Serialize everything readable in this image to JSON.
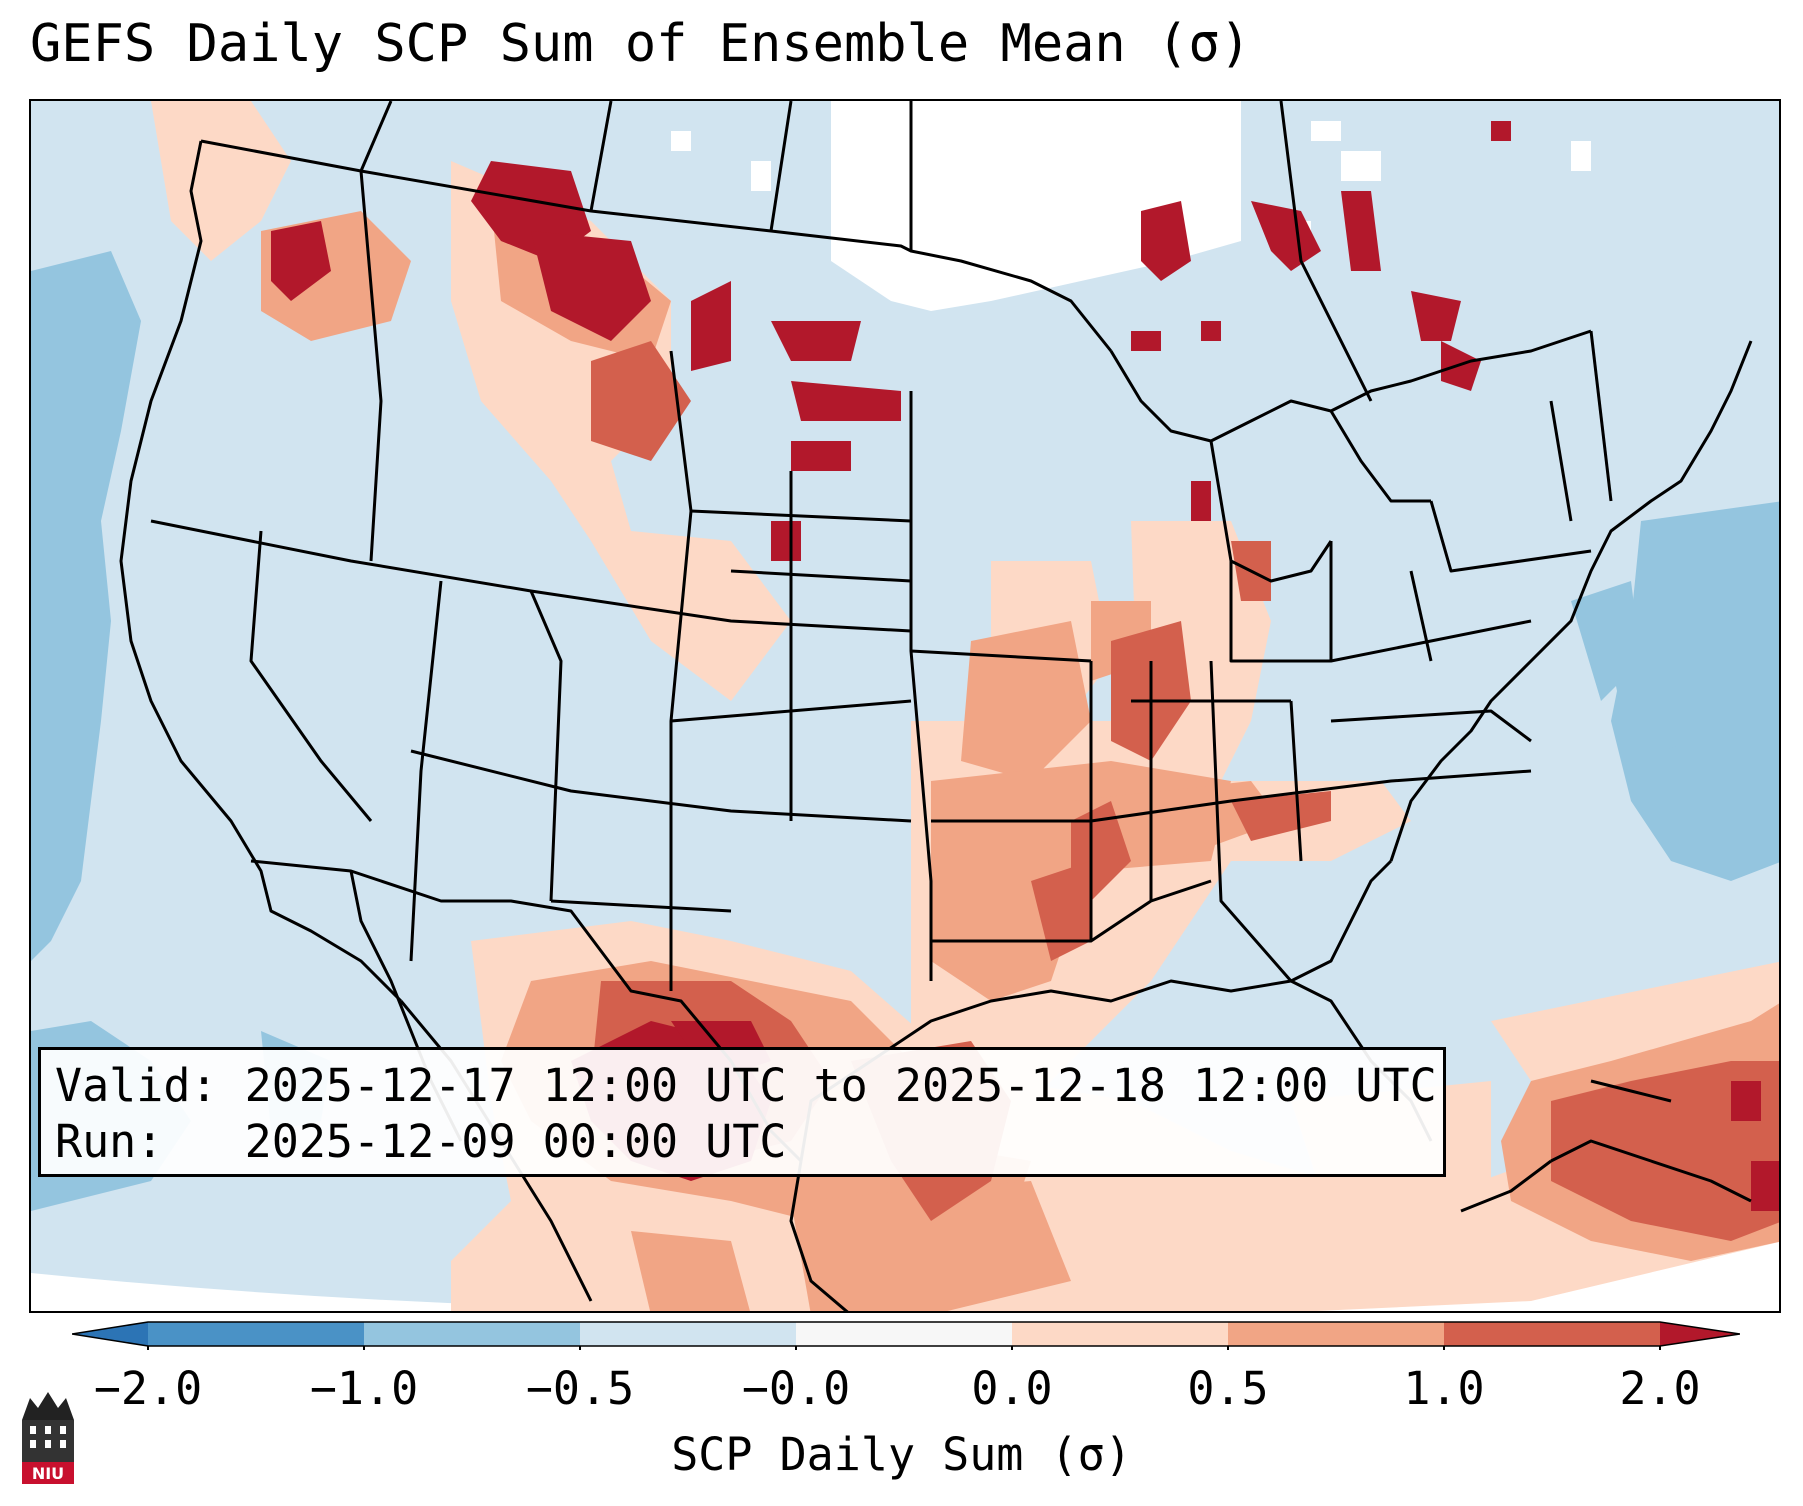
{
  "title": "GEFS Daily SCP Sum of Ensemble Mean (σ)",
  "valid_line": "Valid: 2025-12-17 12:00 UTC to 2025-12-18 12:00 UTC",
  "run_line": "Run:   2025-12-09 00:00 UTC",
  "colorbar": {
    "label": "SCP Daily Sum (σ)",
    "ticks": [
      "−2.0",
      "−1.0",
      "−0.5",
      "−0.0",
      "0.0",
      "0.5",
      "1.0",
      "2.0"
    ],
    "colors": {
      "extend_low": "#2c74b5",
      "c1": "#4a92c6",
      "c2": "#94c5df",
      "c3": "#d1e4f0",
      "c4": "#f7f7f7",
      "c5": "#fdd9c6",
      "c6": "#f1a585",
      "c7": "#d3604d",
      "c8": "#b2182b",
      "extend_high": "#a01424"
    }
  },
  "logo_text": "NIU"
}
